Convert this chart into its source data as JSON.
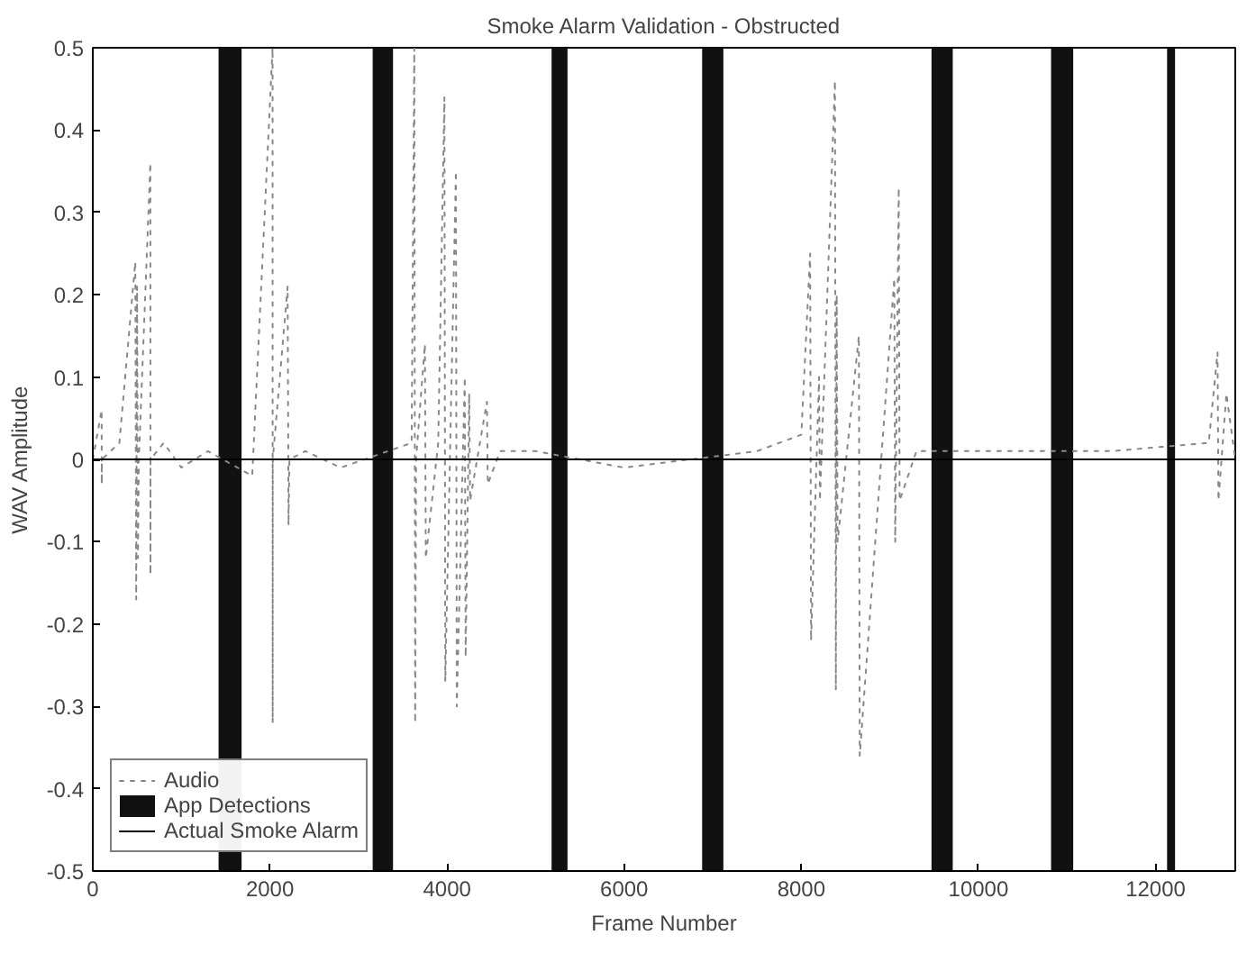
{
  "chart_data": {
    "type": "line",
    "title": "Smoke Alarm Validation - Obstructed",
    "xlabel": "Frame Number",
    "ylabel": "WAV Amplitude",
    "xlim": [
      0,
      12900
    ],
    "ylim": [
      -0.5,
      0.5
    ],
    "xticks": [
      0,
      2000,
      4000,
      6000,
      8000,
      10000,
      12000
    ],
    "yticks": [
      -0.5,
      -0.4,
      -0.3,
      -0.2,
      -0.1,
      0,
      0.1,
      0.2,
      0.3,
      0.4,
      0.5
    ],
    "grid": false,
    "legend": "bottom left",
    "series": [
      {
        "name": "Audio",
        "color": "#888888",
        "line_style": "dotted",
        "x": [
          0,
          100,
          101,
          102,
          300,
          480,
          490,
          500,
          510,
          520,
          650,
          651,
          652,
          800,
          1000,
          1300,
          1800,
          2030,
          2031,
          2032,
          2200,
          2210,
          2220,
          2400,
          2800,
          3600,
          3630,
          3640,
          3650,
          3750,
          3760,
          3900,
          3970,
          3980,
          4100,
          4110,
          4200,
          4210,
          4250,
          4260,
          4450,
          4460,
          4600,
          5000,
          6000,
          7500,
          8000,
          8100,
          8110,
          8200,
          8210,
          8380,
          8390,
          8400,
          8410,
          8650,
          8660,
          9050,
          9060,
          9100,
          9110,
          9300,
          10000,
          11500,
          12600,
          12700,
          12710,
          12800,
          12900
        ],
        "values": [
          0,
          0.06,
          -0.03,
          0,
          0.02,
          0.24,
          -0.17,
          0.21,
          -0.12,
          0,
          0.36,
          -0.14,
          0,
          0.02,
          -0.01,
          0.01,
          -0.02,
          0.5,
          -0.32,
          0,
          0.21,
          -0.08,
          0,
          0.01,
          -0.01,
          0.02,
          0.5,
          -0.32,
          0,
          0.14,
          -0.12,
          0.02,
          0.44,
          -0.27,
          0.35,
          -0.3,
          0.1,
          -0.24,
          0.08,
          -0.05,
          0.07,
          -0.03,
          0.01,
          0.01,
          -0.01,
          0.01,
          0.03,
          0.25,
          -0.22,
          0.1,
          -0.05,
          0.46,
          -0.28,
          0.2,
          -0.1,
          0.15,
          -0.36,
          0.22,
          -0.1,
          0.33,
          -0.05,
          0.01,
          0.01,
          0.01,
          0.02,
          0.13,
          -0.05,
          0.08,
          0
        ]
      },
      {
        "name": "Actual Smoke Alarm",
        "color": "#000000",
        "line_style": "solid",
        "x": [
          0,
          12900
        ],
        "values": [
          0,
          0
        ]
      }
    ],
    "bands": [
      {
        "axis": "x",
        "from": 1420,
        "to": 1680,
        "label": "App Detections",
        "color": "#111111"
      },
      {
        "axis": "x",
        "from": 3160,
        "to": 3390,
        "color": "#111111"
      },
      {
        "axis": "x",
        "from": 5180,
        "to": 5360,
        "color": "#111111"
      },
      {
        "axis": "x",
        "from": 6880,
        "to": 7120,
        "color": "#111111"
      },
      {
        "axis": "x",
        "from": 9470,
        "to": 9710,
        "color": "#111111"
      },
      {
        "axis": "x",
        "from": 10820,
        "to": 11070,
        "color": "#111111"
      },
      {
        "axis": "x",
        "from": 12130,
        "to": 12220,
        "color": "#111111"
      }
    ]
  }
}
